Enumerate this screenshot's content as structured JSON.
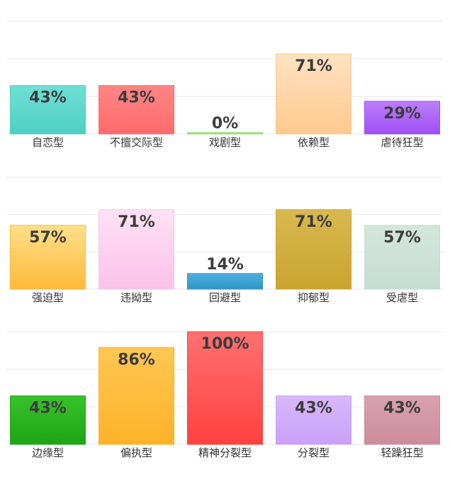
{
  "chart_data": [
    {
      "type": "bar",
      "categories": [
        "自恋型",
        "不擅交际型",
        "戏剧型",
        "依赖型",
        "虐待狂型"
      ],
      "values": [
        43,
        43,
        0,
        71,
        29
      ],
      "value_labels": [
        "43%",
        "43%",
        "0%",
        "71%",
        "29%"
      ],
      "colors": [
        [
          "#6fe0d6",
          "#4fcfc3"
        ],
        [
          "#ff8585",
          "#ff6b6b"
        ],
        [
          "#a8e68a",
          "#8fdc6c"
        ],
        [
          "#ffe2c2",
          "#ffc98e"
        ],
        [
          "#bb7ef9",
          "#9f4ff5"
        ]
      ],
      "ylim": [
        0,
        100
      ],
      "grid": true
    },
    {
      "type": "bar",
      "categories": [
        "强迫型",
        "违拗型",
        "回避型",
        "抑郁型",
        "受虐型"
      ],
      "values": [
        57,
        71,
        14,
        71,
        57
      ],
      "value_labels": [
        "57%",
        "71%",
        "14%",
        "71%",
        "57%"
      ],
      "colors": [
        [
          "#ffe08a",
          "#ffb93a"
        ],
        [
          "#fde2f4",
          "#fbc2ea"
        ],
        [
          "#4fb0dd",
          "#2f95c7"
        ],
        [
          "#d9b850",
          "#c9a430"
        ],
        [
          "#d3e6dc",
          "#c6ddd3"
        ]
      ],
      "ylim": [
        0,
        100
      ],
      "grid": true
    },
    {
      "type": "bar",
      "categories": [
        "边缘型",
        "偏执型",
        "精神分裂型",
        "分裂型",
        "轻躁狂型"
      ],
      "values": [
        43,
        86,
        100,
        43,
        43
      ],
      "value_labels": [
        "43%",
        "86%",
        "100%",
        "43%",
        "43%"
      ],
      "colors": [
        [
          "#38c22a",
          "#1da515"
        ],
        [
          "#ffc752",
          "#ffb22a"
        ],
        [
          "#ff7070",
          "#ff4040"
        ],
        [
          "#d8b8fb",
          "#c9a0f8"
        ],
        [
          "#d9a2b0",
          "#cc8b9c"
        ]
      ],
      "ylim": [
        0,
        100
      ],
      "grid": true
    }
  ]
}
